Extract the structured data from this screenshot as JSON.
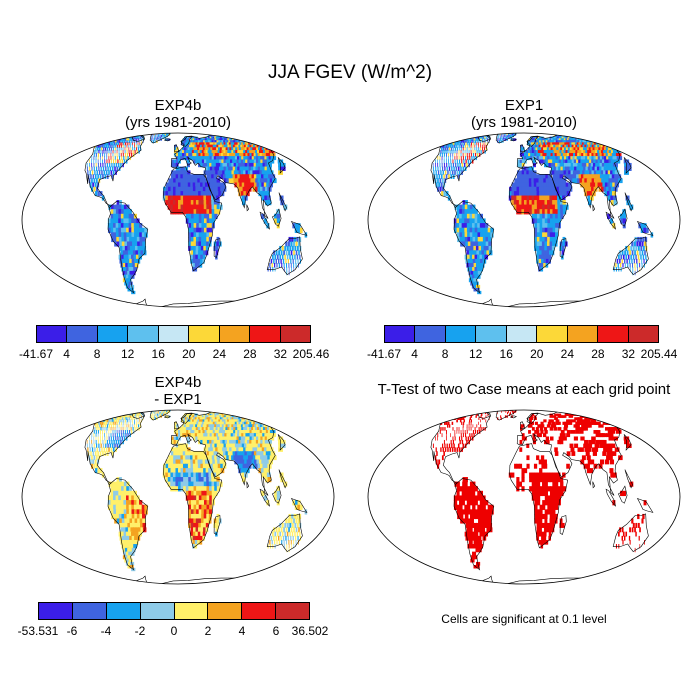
{
  "title": "JJA FGEV (W/m^2)",
  "panels": [
    {
      "id": "exp4b",
      "title_line1": "EXP4b",
      "title_line2": "(yrs 1981-2010)"
    },
    {
      "id": "exp1",
      "title_line1": "EXP1",
      "title_line2": "(yrs 1981-2010)"
    },
    {
      "id": "diff",
      "title_line1": "EXP4b",
      "title_line2": " - EXP1"
    },
    {
      "id": "ttest",
      "title_line1": "T-Test of two Case means at each grid point",
      "title_line2": ""
    }
  ],
  "colorbars": [
    {
      "id": "cb-exp4b",
      "labels": [
        "-41.67",
        "4",
        "8",
        "12",
        "16",
        "20",
        "24",
        "28",
        "32",
        "205.46"
      ],
      "colors": [
        "#3b1ee8",
        "#3f64e0",
        "#17a2ef",
        "#5ec0ee",
        "#c6e7f4",
        "#fcd838",
        "#f4a320",
        "#ee1616",
        "#cc2a2a"
      ]
    },
    {
      "id": "cb-exp1",
      "labels": [
        "-41.67",
        "4",
        "8",
        "12",
        "16",
        "20",
        "24",
        "28",
        "32",
        "205.44"
      ],
      "colors": [
        "#3b1ee8",
        "#3f64e0",
        "#17a2ef",
        "#5ec0ee",
        "#c6e7f4",
        "#fcd838",
        "#f4a320",
        "#ee1616",
        "#cc2a2a"
      ]
    },
    {
      "id": "cb-diff",
      "labels": [
        "-53.531",
        "-6",
        "-4",
        "-2",
        "0",
        "2",
        "4",
        "6",
        "36.502"
      ],
      "colors": [
        "#3b1ee8",
        "#3f64e0",
        "#17a2ef",
        "#8ecbe8",
        "#fff06a",
        "#f4a320",
        "#ee1616",
        "#cc2a2a"
      ]
    }
  ],
  "note": "Cells are significant at 0.1 level",
  "colors": {
    "significant": "#ee0000",
    "land_base_abs": "#4a7fe0",
    "land_base_diff": "#f5e87a",
    "land_base_ttest": "#ffffff"
  }
}
